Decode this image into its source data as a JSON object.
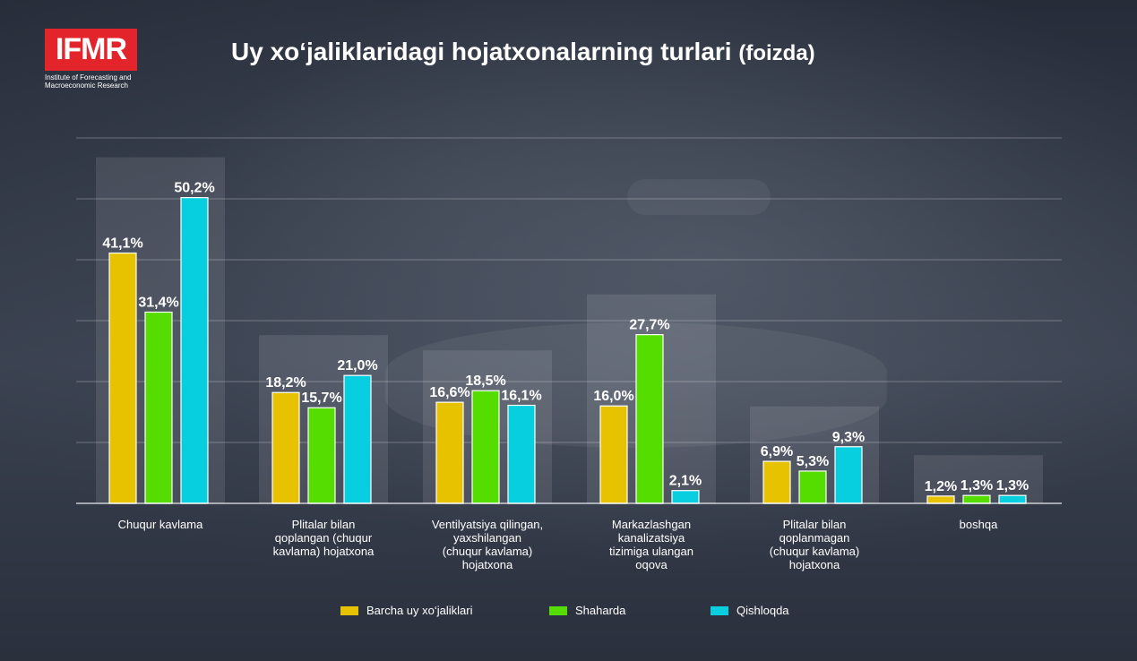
{
  "header": {
    "logo_text": "IFMR",
    "logo_subtitle_line1": "Institute of Forecasting and",
    "logo_subtitle_line2": "Macroeconomic Research",
    "title_main": "Uy xo‘jaliklaridagi hojatxonalarning turlari",
    "title_unit": "(foizda)"
  },
  "colors": {
    "accent_logo": "#e3242b",
    "series_all": "#e6c200",
    "series_urban": "#55dd00",
    "series_rural": "#08cfe0"
  },
  "chart_data": {
    "type": "bar",
    "title": "Uy xo‘jaliklaridagi hojatxonalarning turlari (foizda)",
    "categories": [
      [
        "Chuqur kavlama"
      ],
      [
        "Plitalar bilan",
        "qoplangan (chuqur",
        "kavlama) hojatxona"
      ],
      [
        "Ventilyatsiya qilingan,",
        "yaxshilangan",
        "(chuqur kavlama)",
        "hojatxona"
      ],
      [
        "Markazlashgan",
        "kanalizatsiya",
        "tizimiga ulangan",
        "oqova"
      ],
      [
        "Plitalar bilan",
        "qoplanmagan",
        "(chuqur kavlama)",
        "hojatxona"
      ],
      [
        "boshqa"
      ]
    ],
    "series": [
      {
        "name": "Barcha uy xo‘jaliklari",
        "color": "#e6c200",
        "values": [
          41.1,
          18.2,
          16.6,
          16.0,
          6.9,
          1.2
        ],
        "labels": [
          "41,1%",
          "18,2%",
          "16,6%",
          "16,0%",
          "6,9%",
          "1,2%"
        ]
      },
      {
        "name": "Shaharda",
        "color": "#55dd00",
        "values": [
          31.4,
          15.7,
          18.5,
          27.7,
          5.3,
          1.3
        ],
        "labels": [
          "31,4%",
          "15,7%",
          "18,5%",
          "27,7%",
          "5,3%",
          "1,3%"
        ]
      },
      {
        "name": "Qishloqda",
        "color": "#08cfe0",
        "values": [
          50.2,
          21.0,
          16.1,
          2.1,
          9.3,
          1.3
        ],
        "labels": [
          "50,2%",
          "21,0%",
          "16,1%",
          "2,1%",
          "9,3%",
          "1,3%"
        ]
      }
    ],
    "ylim": [
      0,
      60
    ],
    "grid": true,
    "legend_position": "bottom"
  },
  "legend": {
    "items": [
      {
        "label": "Barcha uy xo‘jaliklari",
        "color": "#e6c200"
      },
      {
        "label": "Shaharda",
        "color": "#55dd00"
      },
      {
        "label": "Qishloqda",
        "color": "#08cfe0"
      }
    ]
  }
}
